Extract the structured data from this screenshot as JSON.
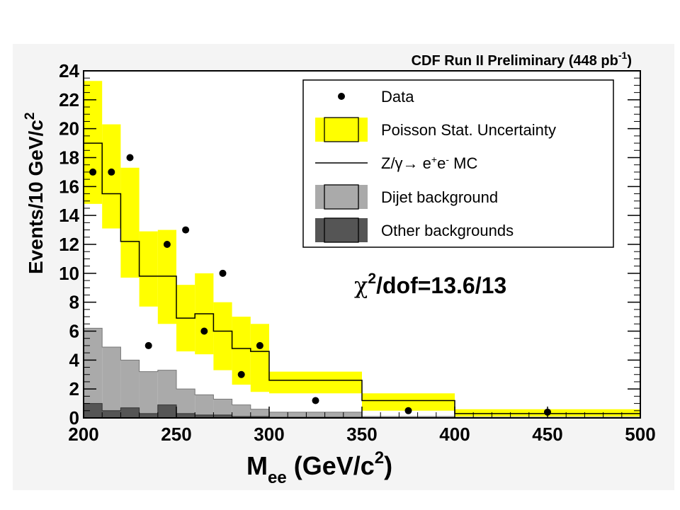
{
  "chart_data": {
    "type": "histogram",
    "title": "CDF Run II Preliminary (448 pb",
    "title_sup": "-1",
    "title_end": ")",
    "ylabel": "Events/10 GeV/c",
    "ylabel_sup": "2",
    "xlabel_main": "M",
    "xlabel_sub": "ee",
    "xlabel_rest": " (GeV/c",
    "xlabel_sup": "2",
    "xlabel_end": ")",
    "xlim": [
      200,
      500
    ],
    "ylim": [
      0,
      24
    ],
    "xticks": [
      200,
      250,
      300,
      350,
      400,
      450,
      500
    ],
    "yticks": [
      0,
      2,
      4,
      6,
      8,
      10,
      12,
      14,
      16,
      18,
      20,
      22,
      24
    ],
    "bins": [
      200,
      210,
      220,
      230,
      240,
      250,
      260,
      270,
      280,
      290,
      300,
      350,
      400,
      500
    ],
    "mc": [
      19.0,
      15.5,
      12.2,
      9.8,
      9.8,
      6.9,
      7.2,
      6.0,
      4.8,
      4.6,
      2.6,
      1.2,
      0.3
    ],
    "unc_low": [
      14.8,
      13.1,
      9.7,
      7.7,
      6.5,
      4.6,
      4.4,
      3.3,
      2.3,
      1.8,
      1.7,
      0.5,
      0.1
    ],
    "unc_high": [
      23.3,
      20.3,
      17.3,
      12.9,
      13.0,
      9.2,
      10.0,
      8.0,
      7.0,
      6.5,
      3.2,
      1.7,
      0.6
    ],
    "dijet": [
      6.2,
      4.9,
      4.0,
      3.2,
      3.3,
      2.0,
      1.6,
      1.3,
      0.9,
      0.6,
      0.4,
      0.1,
      0.05
    ],
    "other": [
      1.0,
      0.5,
      0.7,
      0.3,
      0.9,
      0.3,
      0.2,
      0.2,
      0.1,
      0.1,
      0.05,
      0.02,
      0.02
    ],
    "data_points": [
      {
        "x": 205,
        "y": 17
      },
      {
        "x": 215,
        "y": 17
      },
      {
        "x": 225,
        "y": 18
      },
      {
        "x": 235,
        "y": 5
      },
      {
        "x": 245,
        "y": 12
      },
      {
        "x": 255,
        "y": 13
      },
      {
        "x": 265,
        "y": 6
      },
      {
        "x": 275,
        "y": 10
      },
      {
        "x": 285,
        "y": 3
      },
      {
        "x": 295,
        "y": 5
      },
      {
        "x": 325,
        "y": 1.2
      },
      {
        "x": 375,
        "y": 0.5
      },
      {
        "x": 450,
        "y": 0.4
      }
    ],
    "legend": [
      {
        "key": "data",
        "label": "Data"
      },
      {
        "key": "unc",
        "label": "Poisson Stat. Uncertainty"
      },
      {
        "key": "mc",
        "label": "Z/γ→ e",
        "label_sup1": "+",
        "label_mid": "e",
        "label_sup2": "-",
        "label_end": " MC"
      },
      {
        "key": "dijet",
        "label": "Dijet background"
      },
      {
        "key": "other",
        "label": "Other backgrounds"
      }
    ],
    "legend_position": "top-right",
    "annotation": "χ",
    "annotation_sup": "2",
    "annotation_end": "/dof=13.6/13",
    "colors": {
      "unc_fill": "#ffff00",
      "dijet_fill": "#aaaaaa",
      "other_fill": "#555555",
      "panel_bg": "#f4f4f4",
      "plot_bg": "#ffffff"
    }
  }
}
